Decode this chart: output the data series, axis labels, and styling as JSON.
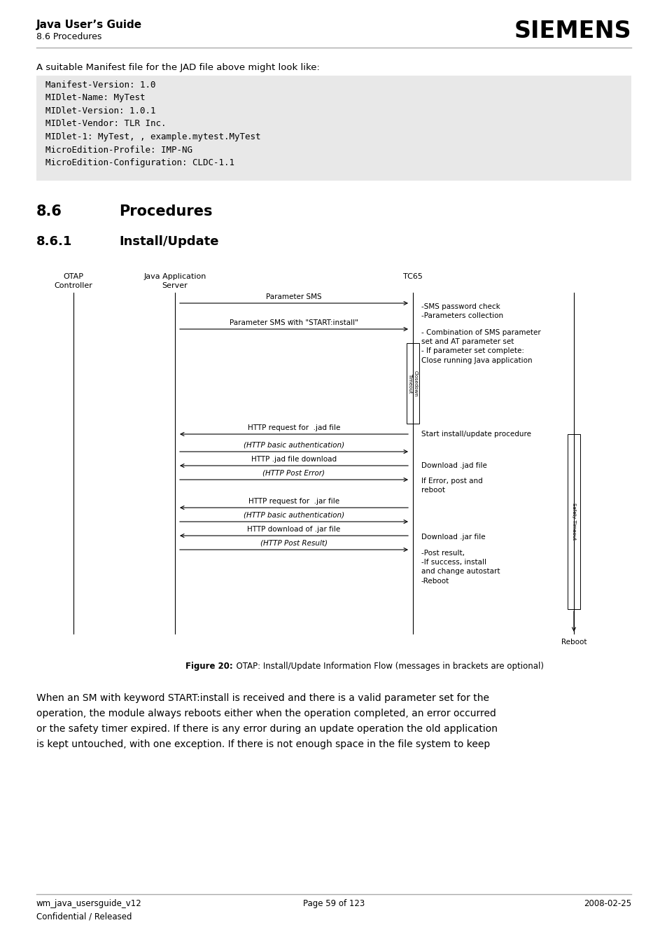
{
  "bg_color": "#ffffff",
  "header_title": "Java User’s Guide",
  "header_subtitle": "8.6 Procedures",
  "header_logo": "SIEMENS",
  "footer_left1": "wm_java_usersguide_v12",
  "footer_left2": "Confidential / Released",
  "footer_center": "Page 59 of 123",
  "footer_right": "2008-02-25",
  "intro_text": "A suitable Manifest file for the JAD file above might look like:",
  "code_block_lines": [
    "Manifest-Version: 1.0",
    "MIDlet-Name: MyTest",
    "MIDlet-Version: 1.0.1",
    "MIDlet-Vendor: TLR Inc.",
    "MIDlet-1: MyTest, , example.mytest.MyTest",
    "MicroEdition-Profile: IMP-NG",
    "MicroEdition-Configuration: CLDC-1.1"
  ],
  "code_block_bg": "#e8e8e8",
  "section_86": "8.6",
  "section_86_title": "Procedures",
  "section_861": "8.6.1",
  "section_861_title": "Install/Update",
  "figure_caption_bold": "Figure 20:",
  "figure_caption_normal": "  OTAP: Install/Update Information Flow (messages in brackets are optional)",
  "bottom_text_lines": [
    "When an SM with keyword START:install is received and there is a valid parameter set for the",
    "operation, the module always reboots either when the operation completed, an error occurred",
    "or the safety timer expired. If there is any error during an update operation the old application",
    "is kept untouched, with one exception. If there is not enough space in the file system to keep"
  ]
}
